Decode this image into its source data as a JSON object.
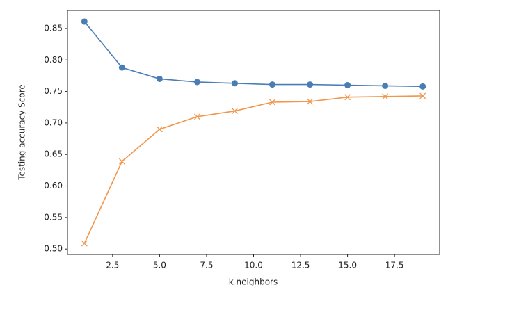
{
  "chart_data": {
    "type": "line",
    "x_label": "k neighbors",
    "y_label": "Testing accuracy Score",
    "x": [
      1,
      3,
      5,
      7,
      9,
      11,
      13,
      15,
      17,
      19
    ],
    "series": [
      {
        "color": "#4a7cb6",
        "marker": "circle",
        "values": [
          0.861,
          0.788,
          0.77,
          0.765,
          0.763,
          0.761,
          0.761,
          0.76,
          0.759,
          0.758
        ]
      },
      {
        "color": "#f1964a",
        "marker": "cross",
        "values": [
          0.509,
          0.639,
          0.69,
          0.71,
          0.719,
          0.733,
          0.734,
          0.741,
          0.742,
          0.743
        ]
      }
    ],
    "xlim": [
      0.1,
      19.9
    ],
    "xticks": [
      2.5,
      {
        "value": 5,
        "label": "5.0"
      },
      7.5,
      {
        "value": 10,
        "label": "10.0"
      },
      12.5,
      {
        "value": 15,
        "label": "15.0"
      },
      17.5
    ],
    "ylim": [
      0.4914,
      0.8786
    ],
    "yticks": [
      {
        "value": 0.5,
        "label": "0.50"
      },
      0.55,
      {
        "value": 0.6,
        "label": "0.60"
      },
      0.65,
      {
        "value": 0.7,
        "label": "0.70"
      },
      0.75,
      {
        "value": 0.8,
        "label": "0.80"
      },
      0.85
    ],
    "grid": false
  }
}
